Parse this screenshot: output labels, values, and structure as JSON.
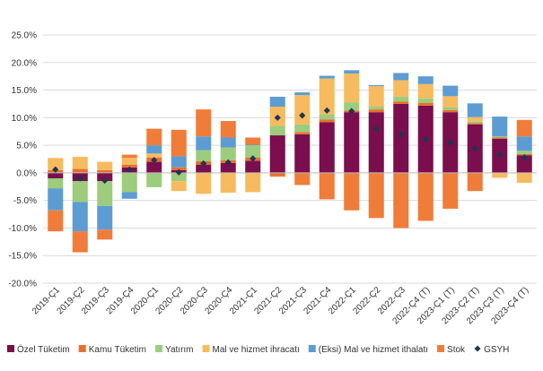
{
  "chart_data": {
    "type": "bar",
    "stacked": true,
    "categories": [
      "2019-Ç1",
      "2019-Ç2",
      "2019-Ç3",
      "2019-Ç4",
      "2020-Ç1",
      "2020-Ç2",
      "2020-Ç3",
      "2020-Ç4",
      "2021-Ç1",
      "2021-Ç2",
      "2021-Ç3",
      "2021-Ç4",
      "2022-Ç1",
      "2022-Ç2",
      "2022-Ç3",
      "2022-Ç4 (T)",
      "2023-Ç1 (T)",
      "2023-Ç2 (T)",
      "2023-Ç3 (T)",
      "2023-Ç4 (T)"
    ],
    "ylim": [
      -20,
      25
    ],
    "yticks": [
      -20,
      -15,
      -10,
      -5,
      0,
      5,
      10,
      15,
      20,
      25
    ],
    "ytick_labels": [
      "-20.0%",
      "-15.0%",
      "-10.0%",
      "-5.0%",
      "0.0%",
      "5.0%",
      "10.0%",
      "15.0%",
      "20.0%",
      "25.0%"
    ],
    "grid": true,
    "legend_position": "bottom",
    "series": [
      {
        "name": "Özel Tüketim",
        "color": "#7b0e4c",
        "values": [
          -1.0,
          -1.5,
          -1.5,
          1.0,
          2.0,
          0.5,
          1.5,
          1.8,
          2.2,
          6.8,
          7.0,
          9.2,
          11.0,
          11.0,
          12.5,
          12.2,
          11.0,
          8.8,
          6.2,
          3.2
        ]
      },
      {
        "name": "Kamu Tüketim",
        "color": "#e8702a",
        "values": [
          0.5,
          0.7,
          0.5,
          0.5,
          0.8,
          0.5,
          0.6,
          0.5,
          0.6,
          -0.5,
          0.4,
          0.5,
          0.3,
          0.5,
          0.4,
          0.5,
          0.4,
          0.2,
          0.2,
          0.2
        ]
      },
      {
        "name": "Yatırım",
        "color": "#9ccc7c",
        "values": [
          -1.8,
          -3.8,
          -4.5,
          -3.5,
          -2.6,
          -1.5,
          2.0,
          2.3,
          2.2,
          1.7,
          1.4,
          0.9,
          1.5,
          0.5,
          0.9,
          0.8,
          0.5,
          0.3,
          0.2,
          0.6
        ]
      },
      {
        "name": "Mal ve hizmet ihracatı",
        "color": "#f6bb5e",
        "values": [
          2.2,
          2.2,
          1.5,
          1.2,
          0.7,
          -1.8,
          -3.8,
          -3.6,
          -3.5,
          3.5,
          5.3,
          6.5,
          5.2,
          3.7,
          3.0,
          2.6,
          2.0,
          0.8,
          -0.9,
          -1.8
        ]
      },
      {
        "name": "(Eksi) Mal ve hizmet ithalatı",
        "color": "#5d9cd3",
        "values": [
          -4.0,
          -5.3,
          -4.3,
          -1.2,
          1.5,
          2.0,
          2.5,
          1.8,
          0.1,
          1.8,
          0.5,
          0.5,
          0.6,
          0.2,
          1.3,
          1.4,
          1.9,
          2.5,
          3.6,
          2.6
        ]
      },
      {
        "name": "Stok",
        "color": "#f07c3a",
        "values": [
          -3.8,
          -3.8,
          -1.8,
          0.6,
          3.0,
          4.8,
          4.9,
          3.0,
          1.3,
          -0.2,
          -2.2,
          -4.8,
          -6.8,
          -8.2,
          -10.0,
          -8.7,
          -6.5,
          -3.3,
          0.0,
          3.0
        ]
      }
    ],
    "line_series": {
      "name": "GSYH",
      "color": "#1f3552",
      "marker": "diamond",
      "values": [
        0.6,
        -1.0,
        -1.4,
        0.6,
        2.3,
        0.1,
        1.7,
        1.9,
        2.6,
        10.0,
        10.4,
        11.3,
        11.2,
        8.0,
        7.0,
        6.1,
        5.5,
        4.4,
        3.3,
        2.8
      ]
    }
  }
}
